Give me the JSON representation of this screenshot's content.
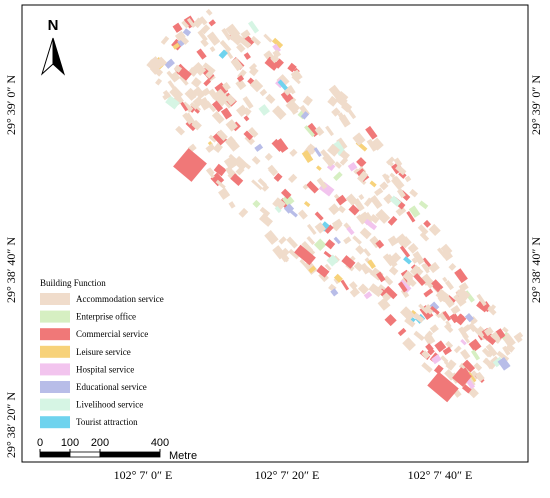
{
  "map": {
    "north_arrow": "N",
    "latitude_labels": [
      "29° 39′ 0″ N",
      "29° 38′ 40″ N",
      "29° 38′ 20″ N"
    ],
    "longitude_labels": [
      "102° 7′ 0″ E",
      "102° 7′ 20″ E",
      "102° 7′ 40″ E"
    ],
    "legend": {
      "title": "Building Function",
      "items": [
        {
          "label": "Accommodation service",
          "color": "#f0dccb"
        },
        {
          "label": "Enterprise office",
          "color": "#d6efc2"
        },
        {
          "label": "Commercial service",
          "color": "#f07878"
        },
        {
          "label": "Leisure service",
          "color": "#f7d27a"
        },
        {
          "label": "Hospital service",
          "color": "#f2c4ee"
        },
        {
          "label": "Educational service",
          "color": "#b8bde8"
        },
        {
          "label": "Livelihood service",
          "color": "#d6f5e4"
        },
        {
          "label": "Tourist attraction",
          "color": "#6fd3ee"
        }
      ]
    },
    "scale_bar": {
      "ticks": [
        0,
        100,
        200,
        400
      ],
      "unit": "Metre"
    }
  }
}
